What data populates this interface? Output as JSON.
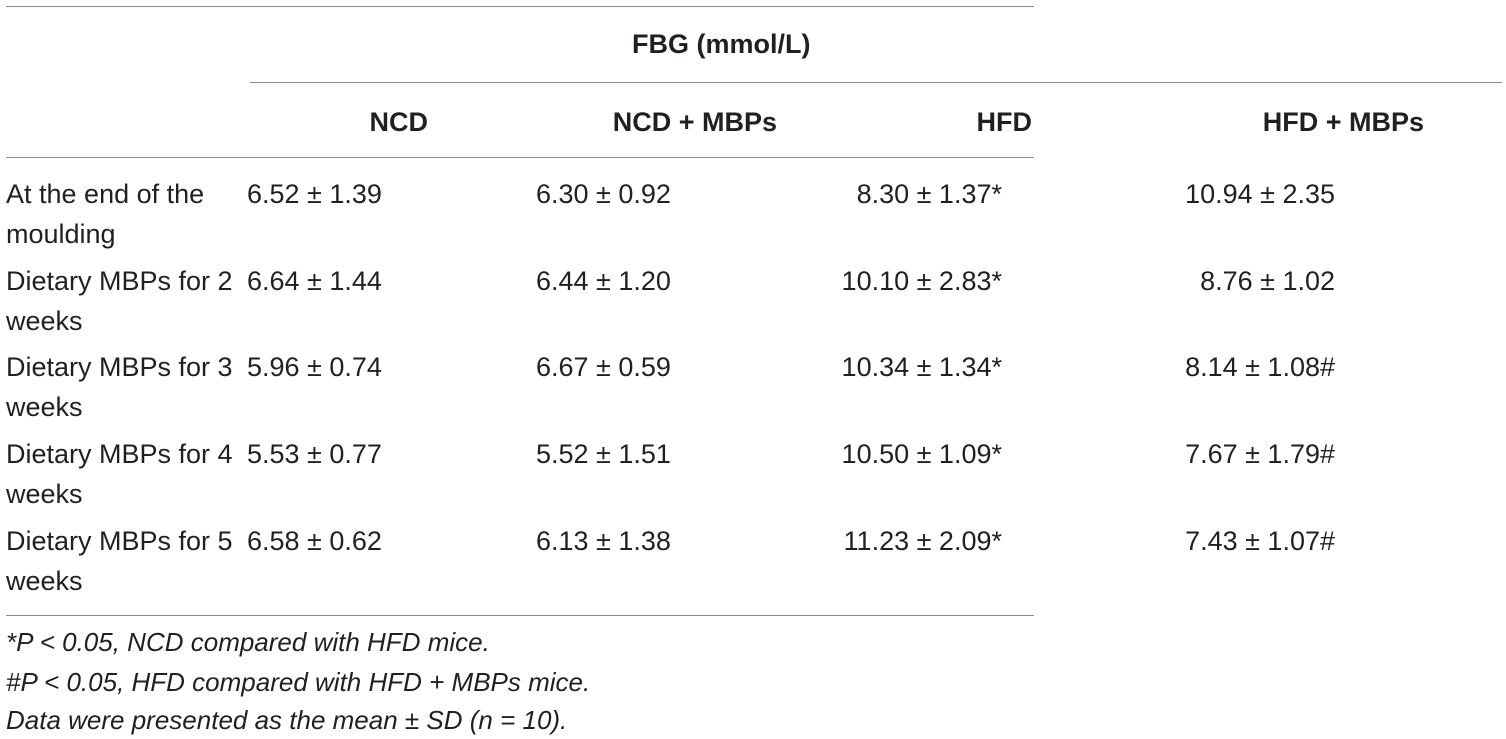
{
  "table": {
    "group_header": "FBG (mmol/L)",
    "columns": [
      "NCD",
      "NCD + MBPs",
      "HFD",
      "HFD + MBPs"
    ],
    "rows": [
      {
        "label": "At the end of the moulding",
        "values": [
          "6.52 ± 1.39",
          "6.30 ± 0.92",
          "8.30 ± 1.37*",
          "10.94 ± 2.35"
        ]
      },
      {
        "label": "Dietary MBPs for 2 weeks",
        "values": [
          "6.64 ± 1.44",
          "6.44 ± 1.20",
          "10.10 ± 2.83*",
          "8.76 ± 1.02"
        ]
      },
      {
        "label": "Dietary MBPs for 3 weeks",
        "values": [
          "5.96 ± 0.74",
          "6.67 ± 0.59",
          "10.34 ± 1.34*",
          "8.14 ± 1.08#"
        ]
      },
      {
        "label": "Dietary MBPs for 4 weeks",
        "values": [
          "5.53 ± 0.77",
          "5.52 ± 1.51",
          "10.50 ± 1.09*",
          "7.67 ± 1.79#"
        ]
      },
      {
        "label": "Dietary MBPs for 5 weeks",
        "values": [
          "6.58 ± 0.62",
          "6.13 ± 1.38",
          "11.23 ± 2.09*",
          "7.43 ± 1.07#"
        ]
      }
    ]
  },
  "footnotes": [
    "*P < 0.05, NCD compared with HFD mice.",
    "#P < 0.05, HFD compared with HFD + MBPs mice.",
    "Data were presented as the mean ± SD (n = 10)."
  ]
}
